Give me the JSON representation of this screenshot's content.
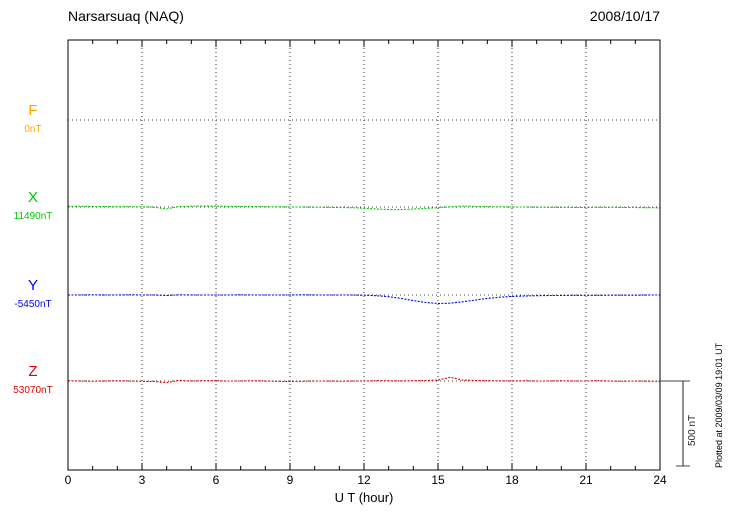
{
  "annotations": {
    "plotted_at": "Plotted at 2009/03/09 19:01 UT"
  },
  "chart_data": {
    "type": "line",
    "title": "Narsarsuaq (NAQ)",
    "date": "2008/10/17",
    "xlabel": "U T (hour)",
    "xlim": [
      0,
      24
    ],
    "x_ticks": [
      0,
      3,
      6,
      9,
      12,
      15,
      18,
      21,
      24
    ],
    "x_step_hours": 0.5,
    "grid": "dotted vertical lines every 3 hours, dotted horizontal baseline per component",
    "values_unit": "nT offset from component baseline",
    "scale_bar": {
      "label": "500 nT",
      "value_nT": 500
    },
    "series": [
      {
        "name": "F",
        "baseline_label": "0nT",
        "color": "#FFA500",
        "plotted": false,
        "values": [
          0,
          0,
          0,
          0,
          0,
          0,
          0,
          0,
          0,
          0,
          0,
          0,
          0,
          0,
          0,
          0,
          0,
          0,
          0,
          0,
          0,
          0,
          0,
          0,
          0,
          0,
          0,
          0,
          0,
          0,
          0,
          0,
          0,
          0,
          0,
          0,
          0,
          0,
          0,
          0,
          0,
          0,
          0,
          0,
          0,
          0,
          0,
          0,
          0
        ]
      },
      {
        "name": "X",
        "baseline_label": "11490nT",
        "color": "#00C800",
        "plotted": true,
        "values": [
          4,
          4,
          3,
          3,
          2,
          2,
          1,
          -1,
          -12,
          3,
          5,
          6,
          5,
          4,
          3,
          3,
          2,
          1,
          0,
          0,
          -1,
          -2,
          -3,
          -4,
          -7,
          -12,
          -15,
          -15,
          -12,
          -8,
          -4,
          1,
          6,
          3,
          2,
          1,
          0,
          0,
          -1,
          -2,
          -2,
          -3,
          -3,
          -2,
          -2,
          -3,
          -3,
          -4,
          -5
        ]
      },
      {
        "name": "Y",
        "baseline_label": "-5450nT",
        "color": "#0000FF",
        "plotted": true,
        "values": [
          0,
          0,
          1,
          0,
          0,
          1,
          0,
          0,
          -3,
          1,
          0,
          0,
          0,
          0,
          1,
          0,
          0,
          0,
          0,
          1,
          0,
          0,
          0,
          0,
          -1,
          -4,
          -10,
          -20,
          -33,
          -44,
          -50,
          -48,
          -40,
          -30,
          -20,
          -13,
          -8,
          -6,
          -4,
          -3,
          -3,
          -2,
          -2,
          -2,
          -1,
          -1,
          -1,
          0,
          0
        ]
      },
      {
        "name": "Z",
        "baseline_label": "53070nT",
        "color": "#E00000",
        "plotted": true,
        "values": [
          2,
          0,
          -1,
          0,
          2,
          0,
          -2,
          -3,
          -10,
          4,
          0,
          2,
          2,
          0,
          0,
          2,
          0,
          -2,
          -3,
          -2,
          0,
          0,
          -1,
          0,
          0,
          2,
          2,
          0,
          2,
          3,
          6,
          22,
          5,
          3,
          2,
          1,
          0,
          2,
          0,
          0,
          2,
          0,
          0,
          2,
          0,
          -2,
          0,
          -1,
          -2
        ]
      }
    ]
  }
}
